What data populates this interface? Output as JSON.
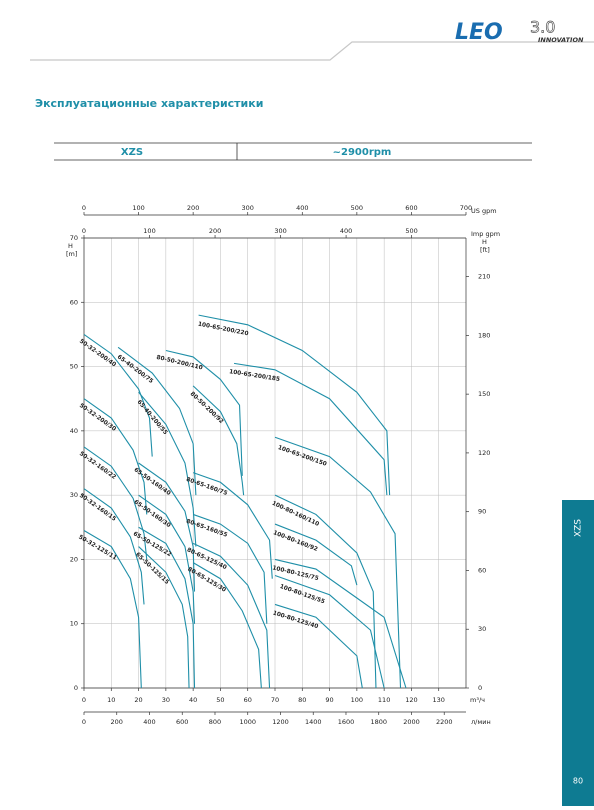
{
  "header": {
    "brand": "LEO",
    "version": "3.0",
    "tagline": "INNOVATION"
  },
  "title": "Эксплуатационные характеристики",
  "table": {
    "cells": [
      "XZS",
      "~2900rpm"
    ]
  },
  "side_tab": "XZS",
  "page_number": "80",
  "chart_data": {
    "type": "line",
    "x_label": "m³/ч",
    "y_label": "H",
    "y_unit": "[m]",
    "xlim": [
      0,
      140
    ],
    "xticks": [
      0,
      10,
      20,
      30,
      40,
      50,
      60,
      70,
      80,
      90,
      100,
      110,
      120,
      130
    ],
    "ylim": [
      0,
      70
    ],
    "yticks": [
      0,
      10,
      20,
      30,
      40,
      50,
      60,
      70
    ],
    "grid": true,
    "x_axes": [
      {
        "label": "US gpm",
        "xlim": [
          0,
          700
        ],
        "xticks": [
          0,
          100,
          200,
          300,
          400,
          500,
          600,
          700
        ],
        "side": "top"
      },
      {
        "label": "Imp gpm",
        "xlim": [
          0,
          583
        ],
        "xticks": [
          0,
          100,
          200,
          300,
          400,
          500
        ],
        "side": "top"
      },
      {
        "label": "л/мин",
        "xlim": [
          0,
          2333
        ],
        "xticks": [
          0,
          200,
          400,
          600,
          800,
          1000,
          1200,
          1400,
          1600,
          1800,
          2000,
          2200
        ],
        "side": "bottom"
      }
    ],
    "y2_label": "H",
    "y2_unit": "[ft]",
    "y2lim": [
      0,
      229.7
    ],
    "y2ticks": [
      0,
      30,
      60,
      90,
      120,
      150,
      180,
      210
    ],
    "series": [
      {
        "name": "50-32-200/40",
        "color": "#1f8fa8",
        "x": [
          0,
          10,
          20,
          24,
          25
        ],
        "values": [
          55,
          52,
          46.5,
          42,
          36
        ]
      },
      {
        "name": "50-32-200/30",
        "color": "#1f8fa8",
        "x": [
          0,
          10,
          18,
          22,
          23
        ],
        "values": [
          45,
          42,
          37,
          32,
          27
        ]
      },
      {
        "name": "50-32-160/22",
        "color": "#1f8fa8",
        "x": [
          0,
          10,
          18,
          22,
          23
        ],
        "values": [
          37.5,
          34.5,
          29.5,
          24,
          20
        ]
      },
      {
        "name": "50-32-160/15",
        "color": "#1f8fa8",
        "x": [
          0,
          10,
          17,
          21,
          22
        ],
        "values": [
          31,
          28,
          23.5,
          18,
          13
        ]
      },
      {
        "name": "50-32-125/11",
        "color": "#1f8fa8",
        "x": [
          0,
          10,
          17,
          20,
          21
        ],
        "values": [
          24.5,
          22,
          17,
          11,
          0
        ]
      },
      {
        "name": "65-40-200/75",
        "color": "#1f8fa8",
        "x": [
          12.5,
          25,
          35,
          40,
          41
        ],
        "values": [
          53,
          49,
          43.5,
          38,
          30
        ]
      },
      {
        "name": "65-40-200/55",
        "color": "#1f8fa8",
        "x": [
          20,
          30,
          37,
          40,
          41
        ],
        "values": [
          46,
          41,
          35,
          28,
          22
        ]
      },
      {
        "name": "65-50-160/40",
        "color": "#1f8fa8",
        "x": [
          20,
          30,
          37,
          40,
          40.5
        ],
        "values": [
          35,
          32,
          27.5,
          22,
          15
        ]
      },
      {
        "name": "65-50-160/30",
        "color": "#1f8fa8",
        "x": [
          20,
          30,
          37,
          40,
          40.5
        ],
        "values": [
          30,
          27,
          22,
          15,
          10
        ]
      },
      {
        "name": "65-50-125/22",
        "color": "#1f8fa8",
        "x": [
          20,
          30,
          37,
          40,
          40.5
        ],
        "values": [
          25,
          22.5,
          17,
          10,
          0
        ]
      },
      {
        "name": "65-50-125/15",
        "color": "#1f8fa8",
        "x": [
          20,
          30,
          36,
          38,
          38.5
        ],
        "values": [
          22,
          18,
          13,
          8,
          0
        ]
      },
      {
        "name": "80-50-200/110",
        "color": "#1f8fa8",
        "x": [
          30,
          40,
          50,
          57,
          58
        ],
        "values": [
          52.5,
          51.5,
          48,
          44,
          33
        ]
      },
      {
        "name": "80-50-200/92",
        "color": "#1f8fa8",
        "x": [
          40,
          50,
          56,
          58,
          58.5
        ],
        "values": [
          47,
          43,
          38,
          32,
          30
        ]
      },
      {
        "name": "80-65-160/75",
        "color": "#1f8fa8",
        "x": [
          40,
          50,
          60,
          68,
          69
        ],
        "values": [
          33.5,
          32,
          28.5,
          23,
          17
        ]
      },
      {
        "name": "80-65-160/55",
        "color": "#1f8fa8",
        "x": [
          40,
          50,
          60,
          66,
          67
        ],
        "values": [
          27,
          25.5,
          22.5,
          18,
          10
        ]
      },
      {
        "name": "80-65-125/40",
        "color": "#1f8fa8",
        "x": [
          40,
          50,
          60,
          67,
          68
        ],
        "values": [
          22.5,
          20.5,
          16,
          9,
          0
        ]
      },
      {
        "name": "80-65-125/30",
        "color": "#1f8fa8",
        "x": [
          40,
          50,
          58,
          64,
          65
        ],
        "values": [
          19.5,
          17,
          12,
          6,
          0
        ]
      },
      {
        "name": "100-65-200/220",
        "color": "#1f8fa8",
        "x": [
          42,
          60,
          80,
          100,
          111,
          112
        ],
        "values": [
          58,
          56.5,
          52.5,
          46,
          40,
          30
        ]
      },
      {
        "name": "100-65-200/185",
        "color": "#1f8fa8",
        "x": [
          55,
          70,
          90,
          110,
          111
        ],
        "values": [
          50.5,
          49.5,
          45,
          35.5,
          30
        ]
      },
      {
        "name": "100-65-200/150",
        "color": "#1f8fa8",
        "x": [
          70,
          90,
          105,
          114,
          116
        ],
        "values": [
          39,
          36,
          30.5,
          24,
          0
        ]
      },
      {
        "name": "100-80-160/110",
        "color": "#1f8fa8",
        "x": [
          70,
          85,
          100,
          106,
          107
        ],
        "values": [
          30,
          27,
          21,
          15,
          0
        ]
      },
      {
        "name": "100-80-160/92",
        "color": "#1f8fa8",
        "x": [
          70,
          85,
          98,
          100
        ],
        "values": [
          25.5,
          23,
          19,
          16
        ]
      },
      {
        "name": "100-80-125/75",
        "color": "#1f8fa8",
        "x": [
          70,
          85,
          100,
          110,
          118
        ],
        "values": [
          20,
          18.5,
          14,
          11,
          0
        ]
      },
      {
        "name": "100-80-125/55",
        "color": "#1f8fa8",
        "x": [
          70,
          90,
          105,
          110
        ],
        "values": [
          17.5,
          14.5,
          9,
          0
        ]
      },
      {
        "name": "100-80-125/40",
        "color": "#1f8fa8",
        "x": [
          70,
          85,
          100,
          102
        ],
        "values": [
          13,
          11,
          5,
          0
        ]
      }
    ]
  }
}
